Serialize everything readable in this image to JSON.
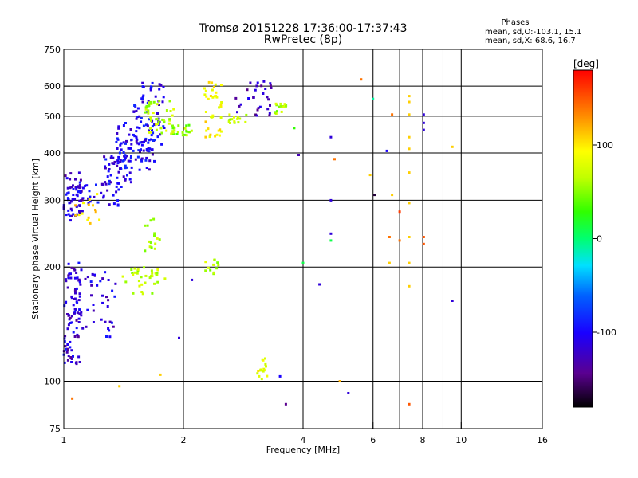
{
  "header": {
    "title_line1": "Tromsø 20151228 17:36:00-17:37:43",
    "title_line2": "RwPretec (8p)"
  },
  "stats": {
    "heading": "Phases",
    "line_o": "mean, sd,O:-103.1, 15.1",
    "line_x": "mean, sd,X:  68.6, 16.7"
  },
  "chart_data": {
    "type": "scatter",
    "xlabel": "Frequency [MHz]",
    "ylabel": "Stationary phase Virtual Height [km]",
    "x_scale": "log",
    "y_scale": "log",
    "xlim": [
      1,
      16
    ],
    "ylim": [
      75,
      750
    ],
    "x_ticks": [
      1,
      2,
      4,
      6,
      8,
      10,
      16
    ],
    "x_tick_labels": [
      "1",
      "2",
      "4",
      "6",
      "8",
      "10",
      "16"
    ],
    "y_ticks": [
      75,
      100,
      200,
      300,
      400,
      500,
      600,
      750
    ],
    "y_tick_labels": [
      "75",
      "100",
      "200",
      "300",
      "400",
      "500",
      "600",
      "750"
    ],
    "x_gridlines": [
      2,
      4,
      6,
      8,
      10
    ],
    "x_minor_gridlines": [
      7,
      9
    ],
    "y_gridlines": [
      100,
      200,
      300,
      400,
      500,
      600
    ],
    "grid": true,
    "colorbar": {
      "label": "[deg]",
      "range": [
        -180,
        180
      ],
      "ticks": [
        100,
        0,
        -100
      ],
      "tick_labels": [
        "100",
        "0",
        "-100"
      ]
    },
    "clusters": [
      {
        "f": [
          1.0,
          1.12
        ],
        "h": [
          265,
          355
        ],
        "ph": -110,
        "n": 60
      },
      {
        "f": [
          1.0,
          1.1
        ],
        "h": [
          110,
          210
        ],
        "ph": -110,
        "n": 90
      },
      {
        "f": [
          1.1,
          1.35
        ],
        "h": [
          130,
          200
        ],
        "ph": -105,
        "n": 40
      },
      {
        "f": [
          1.05,
          1.4
        ],
        "h": [
          290,
          330
        ],
        "ph": -105,
        "n": 30
      },
      {
        "f": [
          1.25,
          1.5
        ],
        "h": [
          330,
          400
        ],
        "ph": -100,
        "n": 50
      },
      {
        "f": [
          1.35,
          1.7
        ],
        "h": [
          360,
          480
        ],
        "ph": -100,
        "n": 80
      },
      {
        "f": [
          1.5,
          1.8
        ],
        "h": [
          420,
          620
        ],
        "ph": -100,
        "n": 60
      },
      {
        "f": [
          1.6,
          1.9
        ],
        "h": [
          450,
          550
        ],
        "ph": 65,
        "n": 45
      },
      {
        "f": [
          1.4,
          1.8
        ],
        "h": [
          170,
          200
        ],
        "ph": 65,
        "n": 35
      },
      {
        "f": [
          1.6,
          1.75
        ],
        "h": [
          220,
          270
        ],
        "ph": 60,
        "n": 15
      },
      {
        "f": [
          1.85,
          2.1
        ],
        "h": [
          445,
          475
        ],
        "ph": 55,
        "n": 25
      },
      {
        "f": [
          2.25,
          2.45
        ],
        "h": [
          190,
          210
        ],
        "ph": 65,
        "n": 12
      },
      {
        "f": [
          2.25,
          2.5
        ],
        "h": [
          440,
          620
        ],
        "ph": 95,
        "n": 40
      },
      {
        "f": [
          2.6,
          2.9
        ],
        "h": [
          475,
          505
        ],
        "ph": 70,
        "n": 15
      },
      {
        "f": [
          2.7,
          3.4
        ],
        "h": [
          500,
          620
        ],
        "ph": -120,
        "n": 30
      },
      {
        "f": [
          3.05,
          3.25
        ],
        "h": [
          100,
          115
        ],
        "ph": 85,
        "n": 15
      },
      {
        "f": [
          3.4,
          3.65
        ],
        "h": [
          505,
          545
        ],
        "ph": 60,
        "n": 15
      },
      {
        "f": [
          1.05,
          1.25
        ],
        "h": [
          260,
          320
        ],
        "ph": 110,
        "n": 15
      }
    ],
    "points": [
      {
        "f": 1.05,
        "h": 90,
        "ph": 140
      },
      {
        "f": 1.38,
        "h": 97,
        "ph": 110
      },
      {
        "f": 1.75,
        "h": 104,
        "ph": 110
      },
      {
        "f": 1.95,
        "h": 130,
        "ph": -110
      },
      {
        "f": 2.1,
        "h": 185,
        "ph": -110
      },
      {
        "f": 3.5,
        "h": 103,
        "ph": -100
      },
      {
        "f": 3.62,
        "h": 87,
        "ph": -130
      },
      {
        "f": 3.9,
        "h": 395,
        "ph": -120
      },
      {
        "f": 3.8,
        "h": 465,
        "ph": 30
      },
      {
        "f": 4.0,
        "h": 205,
        "ph": 10
      },
      {
        "f": 4.4,
        "h": 180,
        "ph": -110
      },
      {
        "f": 4.7,
        "h": 440,
        "ph": -110
      },
      {
        "f": 4.7,
        "h": 300,
        "ph": -110
      },
      {
        "f": 4.7,
        "h": 245,
        "ph": -110
      },
      {
        "f": 4.7,
        "h": 235,
        "ph": 10
      },
      {
        "f": 4.8,
        "h": 385,
        "ph": 140
      },
      {
        "f": 4.95,
        "h": 100,
        "ph": 120
      },
      {
        "f": 5.2,
        "h": 93,
        "ph": -110
      },
      {
        "f": 5.6,
        "h": 625,
        "ph": 140
      },
      {
        "f": 5.9,
        "h": 350,
        "ph": 110
      },
      {
        "f": 6.0,
        "h": 555,
        "ph": -10
      },
      {
        "f": 6.05,
        "h": 310,
        "ph": -160
      },
      {
        "f": 6.5,
        "h": 405,
        "ph": -100
      },
      {
        "f": 6.6,
        "h": 240,
        "ph": 140
      },
      {
        "f": 6.6,
        "h": 205,
        "ph": 110
      },
      {
        "f": 6.7,
        "h": 505,
        "ph": 140
      },
      {
        "f": 6.7,
        "h": 310,
        "ph": 110
      },
      {
        "f": 7.0,
        "h": 280,
        "ph": 160
      },
      {
        "f": 7.0,
        "h": 235,
        "ph": 140
      },
      {
        "f": 7.4,
        "h": 565,
        "ph": 110
      },
      {
        "f": 7.4,
        "h": 545,
        "ph": 110
      },
      {
        "f": 7.4,
        "h": 505,
        "ph": 110
      },
      {
        "f": 7.4,
        "h": 440,
        "ph": 110
      },
      {
        "f": 7.4,
        "h": 410,
        "ph": 110
      },
      {
        "f": 7.4,
        "h": 355,
        "ph": 110
      },
      {
        "f": 7.4,
        "h": 295,
        "ph": 110
      },
      {
        "f": 7.4,
        "h": 240,
        "ph": 110
      },
      {
        "f": 7.4,
        "h": 205,
        "ph": 110
      },
      {
        "f": 7.4,
        "h": 178,
        "ph": 110
      },
      {
        "f": 7.4,
        "h": 87,
        "ph": 150
      },
      {
        "f": 8.05,
        "h": 505,
        "ph": -110
      },
      {
        "f": 8.05,
        "h": 480,
        "ph": -110
      },
      {
        "f": 8.05,
        "h": 460,
        "ph": -110
      },
      {
        "f": 8.05,
        "h": 240,
        "ph": 150
      },
      {
        "f": 8.05,
        "h": 230,
        "ph": 150
      },
      {
        "f": 9.5,
        "h": 415,
        "ph": 110
      },
      {
        "f": 9.5,
        "h": 163,
        "ph": -110
      }
    ]
  }
}
